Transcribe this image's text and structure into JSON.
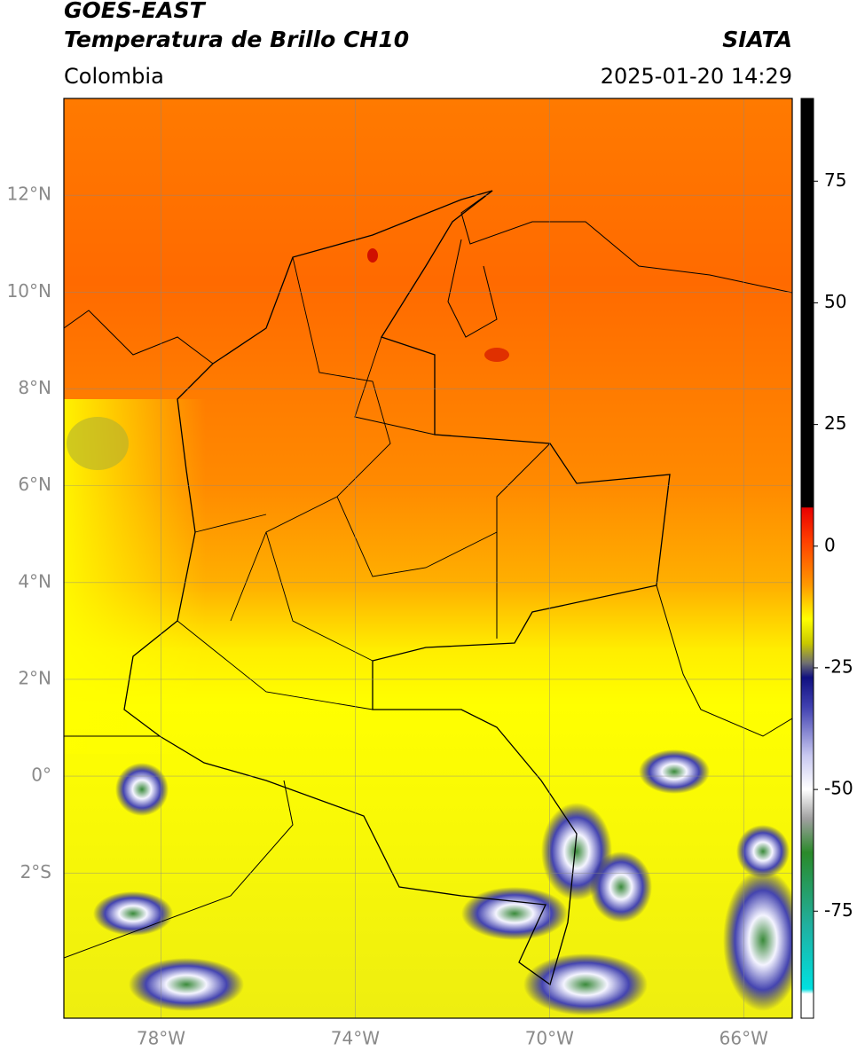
{
  "header": {
    "title": "GOES-EAST",
    "subtitle": "Temperatura de Brillo CH10",
    "region": "Colombia",
    "source": "SIATA",
    "datetime": "2025-01-20 14:29"
  },
  "map": {
    "xlim": [
      -80,
      -65
    ],
    "ylim": [
      -5,
      14
    ],
    "grid": true,
    "xticks": [
      {
        "value": -78,
        "label": "78°W"
      },
      {
        "value": -74,
        "label": "74°W"
      },
      {
        "value": -70,
        "label": "70°W"
      },
      {
        "value": -66,
        "label": "66°W"
      }
    ],
    "yticks": [
      {
        "value": 12,
        "label": "12°N"
      },
      {
        "value": 10,
        "label": "10°N"
      },
      {
        "value": 8,
        "label": "8°N"
      },
      {
        "value": 6,
        "label": "6°N"
      },
      {
        "value": 4,
        "label": "4°N"
      },
      {
        "value": 2,
        "label": "2°N"
      },
      {
        "value": 0,
        "label": "0°"
      },
      {
        "value": -2,
        "label": "2°S"
      }
    ]
  },
  "colorbar": {
    "lim": [
      -97,
      92
    ],
    "ticks": [
      75,
      50,
      25,
      0,
      -25,
      -50,
      -75
    ],
    "colormap": [
      {
        "value": 92,
        "color": "#000000"
      },
      {
        "value": 8,
        "color": "#000000"
      },
      {
        "value": 7.9,
        "color": "#e80000"
      },
      {
        "value": 1,
        "color": "#ff4000"
      },
      {
        "value": -8,
        "color": "#ff9900"
      },
      {
        "value": -15,
        "color": "#ffff00"
      },
      {
        "value": -20,
        "color": "#c8c800"
      },
      {
        "value": -24,
        "color": "#707070"
      },
      {
        "value": -27,
        "color": "#101080"
      },
      {
        "value": -33,
        "color": "#4040b0"
      },
      {
        "value": -43,
        "color": "#c8c8f0"
      },
      {
        "value": -50,
        "color": "#ffffff"
      },
      {
        "value": -56,
        "color": "#a0a0a0"
      },
      {
        "value": -63,
        "color": "#2a8a2a"
      },
      {
        "value": -78,
        "color": "#20b0a0"
      },
      {
        "value": -91,
        "color": "#00e0e0"
      },
      {
        "value": -92,
        "color": "#ffffff"
      },
      {
        "value": -97,
        "color": "#ffffff"
      }
    ]
  }
}
